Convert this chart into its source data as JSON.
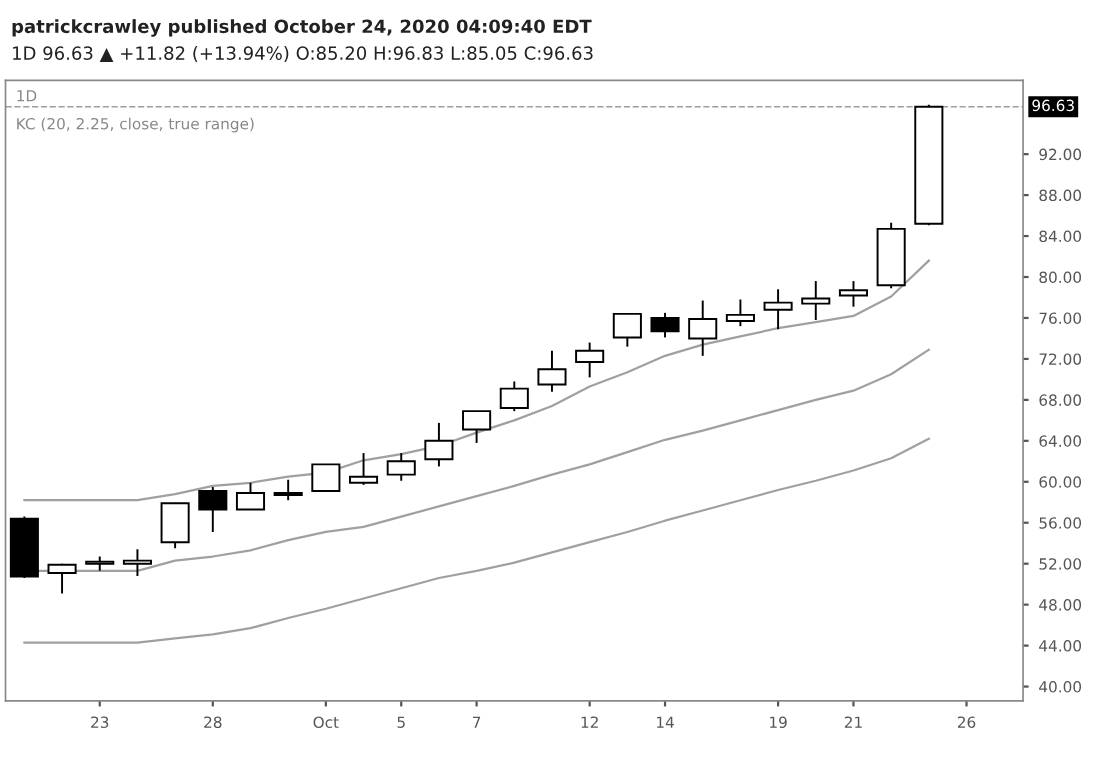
{
  "chart_data": {
    "type": "candlestick",
    "title": "patrickcrawley published October 24, 2020 04:09:40 EDT",
    "subtitle": "1D 96.63 ▲ +11.82 (+13.94%) O:85.20 H:96.83 L:85.05 C:96.63",
    "annotations": [
      "1D",
      "KC (20, 2.25, close, true range)"
    ],
    "categories": [
      null,
      null,
      "23",
      null,
      null,
      "28",
      null,
      null,
      "Oct",
      null,
      "5",
      null,
      "7",
      null,
      null,
      "12",
      null,
      "14",
      null,
      null,
      "19",
      null,
      "21",
      null,
      null,
      "26"
    ],
    "ohlc": [
      [
        56.4,
        56.6,
        50.6,
        50.75
      ],
      [
        51.1,
        52.0,
        49.1,
        51.9
      ],
      [
        52.0,
        52.7,
        51.3,
        52.2
      ],
      [
        52.0,
        53.4,
        50.8,
        52.3
      ],
      [
        54.1,
        57.9,
        53.5,
        57.9
      ],
      [
        59.1,
        59.5,
        55.1,
        57.3
      ],
      [
        57.3,
        59.9,
        57.3,
        58.9
      ],
      [
        58.7,
        60.2,
        58.2,
        58.9
      ],
      [
        59.1,
        61.7,
        59.1,
        61.7
      ],
      [
        59.9,
        62.8,
        59.7,
        60.5
      ],
      [
        60.7,
        62.8,
        60.1,
        62.0
      ],
      [
        62.2,
        65.75,
        61.5,
        64.0
      ],
      [
        65.1,
        66.9,
        63.8,
        66.9
      ],
      [
        67.2,
        69.8,
        66.9,
        69.1
      ],
      [
        69.5,
        72.8,
        68.8,
        71.0
      ],
      [
        71.7,
        73.6,
        70.2,
        72.8
      ],
      [
        74.1,
        76.4,
        73.2,
        76.4
      ],
      [
        76.0,
        76.5,
        74.1,
        74.7
      ],
      [
        74.0,
        77.7,
        72.3,
        75.9
      ],
      [
        75.7,
        77.8,
        75.2,
        76.3
      ],
      [
        76.8,
        78.8,
        74.9,
        77.5
      ],
      [
        77.4,
        79.6,
        75.8,
        77.9
      ],
      [
        78.2,
        79.6,
        77.1,
        78.7
      ],
      [
        79.2,
        85.3,
        78.9,
        84.7
      ],
      [
        85.2,
        96.83,
        85.05,
        96.63
      ],
      null
    ],
    "colors": [
      "#000000",
      "#ffffff",
      "#ffffff",
      "#ffffff",
      "#ffffff",
      "#000000",
      "#ffffff",
      "#ffffff",
      "#ffffff",
      "#ffffff",
      "#ffffff",
      "#ffffff",
      "#ffffff",
      "#ffffff",
      "#ffffff",
      "#ffffff",
      "#ffffff",
      "#000000",
      "#ffffff",
      "#ffffff",
      "#ffffff",
      "#ffffff",
      "#ffffff",
      "#ffffff",
      "#ffffff",
      null
    ],
    "series": [
      {
        "type": "line",
        "color": "#a0a0a0",
        "values": [
          58.2,
          58.2,
          58.2,
          58.2,
          58.8,
          59.6,
          59.9,
          60.5,
          60.9,
          62.1,
          62.7,
          63.5,
          64.8,
          66.0,
          67.4,
          69.3,
          70.7,
          72.3,
          73.4,
          74.2,
          75.0,
          75.6,
          76.2,
          78.1,
          81.6,
          null
        ]
      },
      {
        "type": "line",
        "color": "#a0a0a0",
        "values": [
          51.3,
          51.3,
          51.3,
          51.3,
          52.3,
          52.7,
          53.3,
          54.3,
          55.1,
          55.6,
          56.6,
          57.6,
          58.6,
          59.6,
          60.7,
          61.7,
          62.9,
          64.1,
          65.0,
          66.0,
          67.0,
          68.0,
          68.9,
          70.5,
          72.9,
          null
        ]
      },
      {
        "type": "line",
        "color": "#a0a0a0",
        "values": [
          44.3,
          44.3,
          44.3,
          44.3,
          44.7,
          45.1,
          45.7,
          46.7,
          47.6,
          48.6,
          49.6,
          50.6,
          51.3,
          52.1,
          53.1,
          54.1,
          55.1,
          56.2,
          57.2,
          58.2,
          59.2,
          60.1,
          61.1,
          62.3,
          64.2,
          null
        ]
      }
    ],
    "ref_lines": [
      {
        "axis": "y",
        "value": 96.63,
        "label": "96.63",
        "color": "#9e9e9e",
        "line_style": "dashed"
      }
    ],
    "ylim": [
      38.6,
      99.2
    ],
    "yticks": [
      {
        "value": 40,
        "label": "40.00"
      },
      {
        "value": 44,
        "label": "44.00"
      },
      {
        "value": 48,
        "label": "48.00"
      },
      {
        "value": 52,
        "label": "52.00"
      },
      {
        "value": 56,
        "label": "56.00"
      },
      {
        "value": 60,
        "label": "60.00"
      },
      {
        "value": 64,
        "label": "64.00"
      },
      {
        "value": 68,
        "label": "68.00"
      },
      {
        "value": 72,
        "label": "72.00"
      },
      {
        "value": 76,
        "label": "76.00"
      },
      {
        "value": 80,
        "label": "80.00"
      },
      {
        "value": 84,
        "label": "84.00"
      },
      {
        "value": 88,
        "label": "88.00"
      },
      {
        "value": 92,
        "label": "92.00"
      }
    ],
    "grid": false,
    "legend": false
  }
}
